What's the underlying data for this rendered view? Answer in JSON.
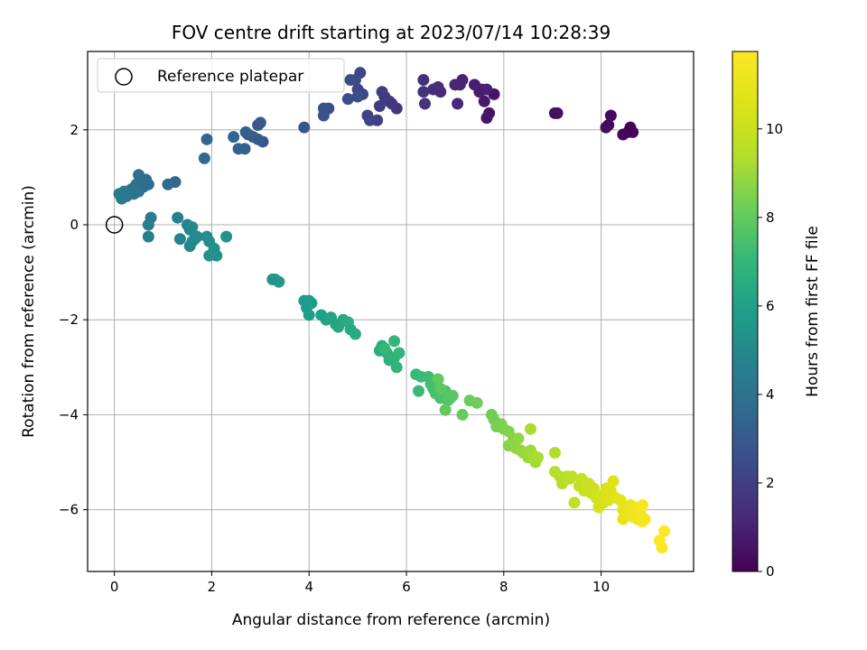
{
  "chart_data": {
    "type": "scatter",
    "title": "FOV centre drift starting at 2023/07/14 10:28:39",
    "xlabel": "Angular distance from reference (arcmin)",
    "ylabel": "Rotation from reference (arcmin)",
    "xlim": [
      -0.55,
      11.9
    ],
    "ylim": [
      -7.3,
      3.65
    ],
    "xticks": [
      0,
      2,
      4,
      6,
      8,
      10
    ],
    "yticks": [
      -6,
      -4,
      -2,
      0,
      2
    ],
    "grid": true,
    "legend": {
      "placement": "top-left",
      "entries": [
        "Reference platepar"
      ]
    },
    "colorbar": {
      "label": "Hours from first FF file",
      "range": [
        0,
        11.75
      ],
      "ticks": [
        0,
        2,
        4,
        6,
        8,
        10
      ],
      "colormap": "viridis"
    },
    "reference": {
      "x": 0,
      "y": 0
    },
    "series": [
      {
        "points": [
          [
            10.55,
            1.95
          ],
          [
            10.6,
            2.05
          ],
          [
            10.65,
            1.95
          ],
          [
            10.45,
            1.9
          ],
          [
            10.15,
            2.1
          ],
          [
            10.2,
            2.3
          ],
          [
            10.1,
            2.05
          ],
          [
            9.05,
            2.35
          ],
          [
            9.1,
            2.35
          ],
          [
            7.8,
            2.75
          ],
          [
            7.7,
            2.35
          ],
          [
            7.65,
            2.25
          ],
          [
            7.6,
            2.6
          ],
          [
            7.55,
            2.85
          ],
          [
            7.5,
            2.8
          ],
          [
            7.4,
            2.95
          ],
          [
            7.65,
            2.85
          ],
          [
            7.15,
            3.05
          ],
          [
            7.1,
            2.95
          ],
          [
            7.0,
            2.95
          ],
          [
            7.05,
            2.55
          ],
          [
            6.7,
            2.8
          ],
          [
            6.65,
            2.9
          ],
          [
            6.55,
            2.85
          ],
          [
            6.35,
            3.05
          ],
          [
            6.35,
            2.8
          ],
          [
            6.38,
            2.55
          ],
          [
            5.8,
            2.45
          ],
          [
            5.7,
            2.55
          ],
          [
            5.65,
            2.6
          ],
          [
            5.55,
            2.7
          ],
          [
            5.5,
            2.8
          ],
          [
            5.45,
            2.5
          ],
          [
            5.4,
            2.2
          ],
          [
            5.2,
            2.3
          ],
          [
            5.25,
            2.2
          ],
          [
            5.1,
            2.75
          ],
          [
            5.05,
            3.2
          ],
          [
            5.0,
            2.85
          ],
          [
            4.95,
            3.05
          ],
          [
            4.85,
            3.05
          ],
          [
            4.8,
            2.65
          ],
          [
            5.0,
            2.7
          ],
          [
            4.4,
            2.45
          ],
          [
            4.3,
            2.45
          ],
          [
            4.3,
            2.3
          ],
          [
            3.9,
            2.05
          ],
          [
            3.05,
            1.75
          ],
          [
            2.95,
            2.1
          ],
          [
            3.0,
            2.15
          ],
          [
            2.95,
            1.8
          ],
          [
            2.85,
            1.85
          ],
          [
            2.75,
            1.9
          ],
          [
            2.7,
            1.95
          ],
          [
            2.68,
            1.6
          ],
          [
            2.55,
            1.6
          ],
          [
            2.45,
            1.85
          ],
          [
            1.9,
            1.8
          ],
          [
            1.85,
            1.4
          ],
          [
            1.25,
            0.9
          ],
          [
            1.1,
            0.85
          ],
          [
            0.7,
            0.85
          ],
          [
            0.65,
            0.95
          ],
          [
            0.6,
            0.8
          ],
          [
            0.5,
            1.05
          ],
          [
            0.45,
            0.85
          ],
          [
            0.5,
            0.7
          ],
          [
            0.4,
            0.65
          ],
          [
            0.35,
            0.75
          ],
          [
            0.25,
            0.6
          ],
          [
            0.2,
            0.7
          ],
          [
            0.15,
            0.55
          ],
          [
            0.1,
            0.65
          ],
          [
            0.75,
            0.15
          ],
          [
            0.7,
            0.0
          ],
          [
            0.7,
            -0.25
          ],
          [
            1.3,
            0.15
          ],
          [
            1.35,
            -0.3
          ],
          [
            1.5,
            0.0
          ],
          [
            1.55,
            -0.1
          ],
          [
            1.6,
            -0.35
          ],
          [
            1.55,
            -0.45
          ],
          [
            1.65,
            -0.3
          ],
          [
            1.7,
            -0.25
          ],
          [
            1.6,
            -0.05
          ],
          [
            1.9,
            -0.25
          ],
          [
            1.95,
            -0.35
          ],
          [
            2.05,
            -0.5
          ],
          [
            2.1,
            -0.65
          ],
          [
            1.95,
            -0.65
          ],
          [
            2.3,
            -0.25
          ],
          [
            3.25,
            -1.15
          ],
          [
            3.3,
            -1.15
          ],
          [
            3.38,
            -1.2
          ],
          [
            3.9,
            -1.6
          ],
          [
            4.0,
            -1.6
          ],
          [
            4.05,
            -1.65
          ],
          [
            3.95,
            -1.75
          ],
          [
            4.0,
            -1.9
          ],
          [
            4.25,
            -1.9
          ],
          [
            4.35,
            -2.0
          ],
          [
            4.45,
            -1.95
          ],
          [
            4.55,
            -2.1
          ],
          [
            4.6,
            -2.15
          ],
          [
            4.7,
            -2.0
          ],
          [
            4.85,
            -2.2
          ],
          [
            4.95,
            -2.3
          ],
          [
            4.8,
            -2.05
          ],
          [
            5.5,
            -2.55
          ],
          [
            5.45,
            -2.65
          ],
          [
            5.6,
            -2.7
          ],
          [
            5.65,
            -2.85
          ],
          [
            5.75,
            -2.8
          ],
          [
            5.8,
            -3.0
          ],
          [
            5.85,
            -2.7
          ],
          [
            5.75,
            -2.45
          ],
          [
            5.55,
            -2.6
          ],
          [
            6.2,
            -3.15
          ],
          [
            6.25,
            -3.5
          ],
          [
            6.3,
            -3.2
          ],
          [
            6.45,
            -3.2
          ],
          [
            6.5,
            -3.35
          ],
          [
            6.55,
            -3.45
          ],
          [
            6.6,
            -3.55
          ],
          [
            6.7,
            -3.65
          ],
          [
            6.75,
            -3.55
          ],
          [
            6.8,
            -3.5
          ],
          [
            6.85,
            -3.7
          ],
          [
            6.9,
            -3.65
          ],
          [
            6.95,
            -3.6
          ],
          [
            6.7,
            -3.45
          ],
          [
            6.8,
            -3.9
          ],
          [
            6.65,
            -3.25
          ],
          [
            7.15,
            -4.0
          ],
          [
            7.3,
            -3.7
          ],
          [
            7.45,
            -3.75
          ],
          [
            7.75,
            -4.0
          ],
          [
            7.8,
            -4.1
          ],
          [
            7.85,
            -4.25
          ],
          [
            7.95,
            -4.2
          ],
          [
            8.0,
            -4.3
          ],
          [
            8.1,
            -4.35
          ],
          [
            8.2,
            -4.5
          ],
          [
            8.1,
            -4.65
          ],
          [
            8.25,
            -4.7
          ],
          [
            8.3,
            -4.5
          ],
          [
            8.35,
            -4.75
          ],
          [
            8.4,
            -4.8
          ],
          [
            8.5,
            -4.9
          ],
          [
            8.55,
            -4.75
          ],
          [
            8.6,
            -4.85
          ],
          [
            8.65,
            -5.0
          ],
          [
            8.7,
            -4.9
          ],
          [
            8.55,
            -4.3
          ],
          [
            9.05,
            -4.8
          ],
          [
            9.05,
            -5.2
          ],
          [
            9.15,
            -5.3
          ],
          [
            9.2,
            -5.45
          ],
          [
            9.3,
            -5.3
          ],
          [
            9.35,
            -5.35
          ],
          [
            9.4,
            -5.3
          ],
          [
            9.45,
            -5.85
          ],
          [
            9.55,
            -5.5
          ],
          [
            9.6,
            -5.35
          ],
          [
            9.65,
            -5.6
          ],
          [
            9.7,
            -5.55
          ],
          [
            9.75,
            -5.45
          ],
          [
            9.8,
            -5.65
          ],
          [
            9.85,
            -5.55
          ],
          [
            9.9,
            -5.75
          ],
          [
            9.95,
            -5.95
          ],
          [
            10.0,
            -5.7
          ],
          [
            10.05,
            -5.85
          ],
          [
            10.1,
            -5.55
          ],
          [
            10.15,
            -5.8
          ],
          [
            10.2,
            -5.6
          ],
          [
            10.25,
            -5.4
          ],
          [
            10.3,
            -5.75
          ],
          [
            10.4,
            -5.8
          ],
          [
            10.45,
            -6.0
          ],
          [
            10.5,
            -6.1
          ],
          [
            10.45,
            -6.2
          ],
          [
            10.55,
            -6.05
          ],
          [
            10.6,
            -5.9
          ],
          [
            10.65,
            -6.15
          ],
          [
            10.7,
            -6.1
          ],
          [
            10.75,
            -6.2
          ],
          [
            10.8,
            -6.05
          ],
          [
            10.85,
            -6.25
          ],
          [
            10.9,
            -6.2
          ],
          [
            10.75,
            -5.95
          ],
          [
            10.85,
            -5.9
          ],
          [
            11.2,
            -6.65
          ],
          [
            11.25,
            -6.8
          ],
          [
            11.3,
            -6.45
          ]
        ]
      }
    ]
  }
}
